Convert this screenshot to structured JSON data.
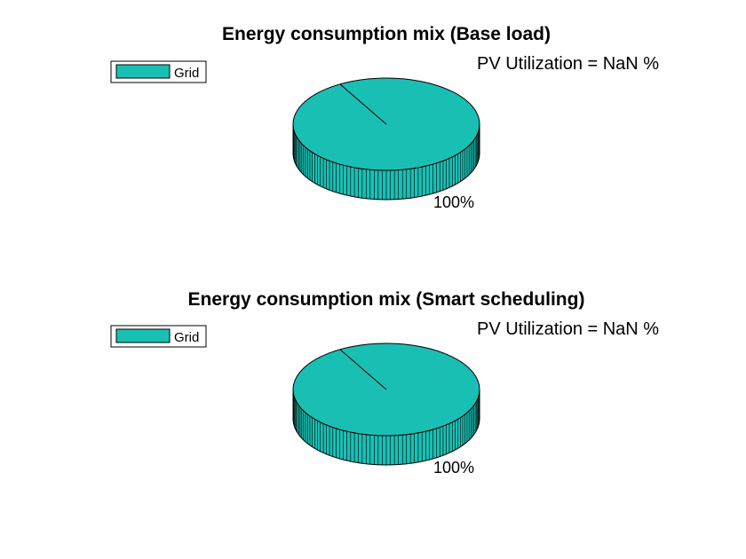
{
  "chart_data": [
    {
      "type": "pie",
      "style": "3d",
      "title": "Energy consumption mix (Base load)",
      "annotation": "PV Utilization = NaN %",
      "legend_position": "top-left",
      "slices": [
        {
          "name": "Grid",
          "value": 100,
          "label": "100%"
        }
      ]
    },
    {
      "type": "pie",
      "style": "3d",
      "title": "Energy consumption mix (Smart scheduling)",
      "annotation": "PV Utilization = NaN %",
      "legend_position": "top-left",
      "slices": [
        {
          "name": "Grid",
          "value": 100,
          "label": "100%"
        }
      ]
    }
  ],
  "colors": {
    "slice": "#1abfb4",
    "outline": "#000000",
    "background": "#ffffff"
  }
}
